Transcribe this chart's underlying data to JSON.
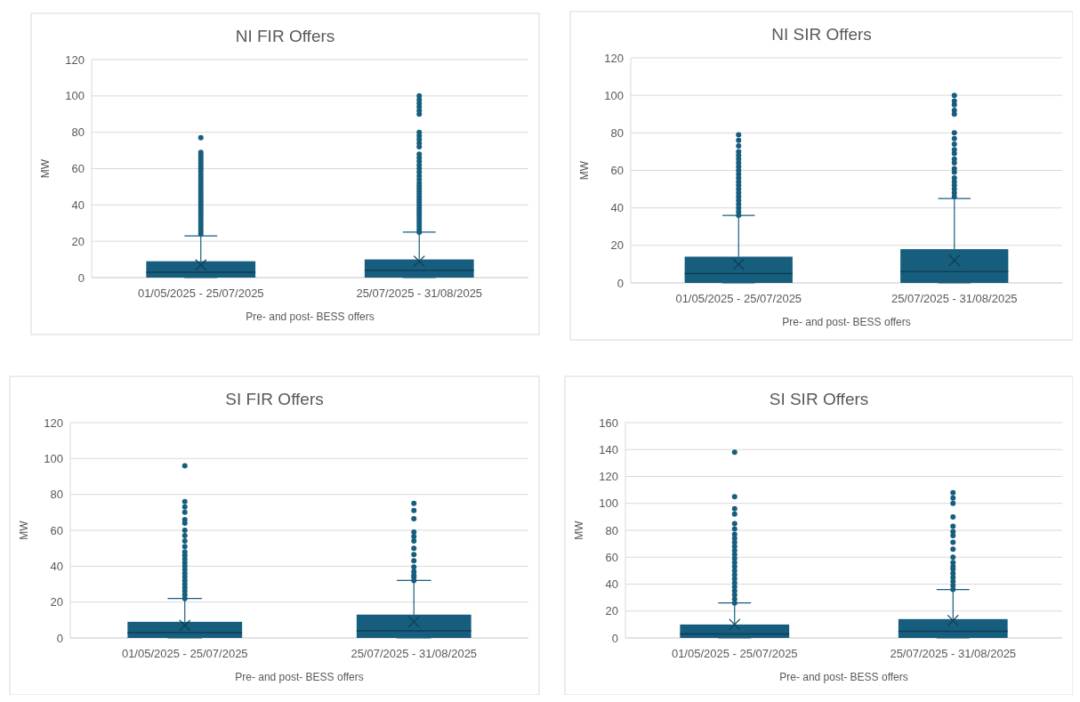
{
  "chart_data": [
    {
      "type": "box",
      "title": "NI FIR Offers",
      "xlabel": "Pre- and post- BESS offers",
      "ylabel": "MW",
      "categories": [
        "01/05/2025 - 25/07/2025",
        "25/07/2025 - 31/08/2025"
      ],
      "ylim": [
        0,
        120
      ],
      "yticks": [
        0,
        20,
        40,
        60,
        80,
        100,
        120
      ],
      "grid": "y",
      "series": [
        {
          "color": "#175e7e",
          "boxes": [
            {
              "low": 0,
              "q1": 0,
              "median": 3,
              "q3": 9,
              "high": 23,
              "mean": 7,
              "outliers": [
                24,
                25.5,
                27,
                28.5,
                30,
                31.5,
                33,
                34.5,
                36,
                37.5,
                39,
                40.5,
                42,
                43.5,
                45,
                46.5,
                48,
                49.5,
                51,
                52.5,
                54,
                55.5,
                57,
                58.5,
                60,
                61.5,
                63,
                64.5,
                66,
                67.5,
                69,
                77
              ]
            },
            {
              "low": 0,
              "q1": 0,
              "median": 4,
              "q3": 10,
              "high": 25,
              "mean": 9,
              "outliers": [
                25,
                26.5,
                28,
                29.5,
                31,
                32.5,
                34,
                35.5,
                37,
                38.5,
                40,
                41.5,
                43,
                44.5,
                46,
                47.5,
                49,
                50.5,
                52,
                54,
                56,
                58,
                60,
                62,
                64,
                66,
                68,
                72,
                74,
                76,
                78,
                80,
                90,
                92,
                94,
                96,
                98,
                100
              ]
            }
          ]
        }
      ]
    },
    {
      "type": "box",
      "title": "NI SIR Offers",
      "xlabel": "Pre- and post- BESS offers",
      "ylabel": "MW",
      "categories": [
        "01/05/2025 - 25/07/2025",
        "25/07/2025 - 31/08/2025"
      ],
      "ylim": [
        0,
        120
      ],
      "yticks": [
        0,
        20,
        40,
        60,
        80,
        100,
        120
      ],
      "grid": "y",
      "series": [
        {
          "color": "#175e7e",
          "boxes": [
            {
              "low": 0,
              "q1": 0,
              "median": 5,
              "q3": 14,
              "high": 36,
              "mean": 10,
              "outliers": [
                36,
                38,
                40,
                42,
                44,
                46,
                48,
                50,
                52,
                54,
                56,
                58,
                60,
                62,
                64,
                66,
                68,
                70,
                73,
                76,
                79
              ]
            },
            {
              "low": 0,
              "q1": 0,
              "median": 6,
              "q3": 18,
              "high": 45,
              "mean": 12,
              "outliers": [
                46,
                48,
                50,
                52,
                54,
                56,
                59,
                61,
                64,
                66,
                69,
                71,
                74,
                77,
                80,
                90,
                92,
                95,
                97,
                100
              ]
            }
          ]
        }
      ]
    },
    {
      "type": "box",
      "title": "SI FIR Offers",
      "xlabel": "Pre- and post- BESS offers",
      "ylabel": "MW",
      "categories": [
        "01/05/2025 - 25/07/2025",
        "25/07/2025 - 31/08/2025"
      ],
      "ylim": [
        0,
        120
      ],
      "yticks": [
        0,
        20,
        40,
        60,
        80,
        100,
        120
      ],
      "grid": "y",
      "series": [
        {
          "color": "#175e7e",
          "boxes": [
            {
              "low": 0,
              "q1": 0,
              "median": 3,
              "q3": 9,
              "high": 22,
              "mean": 7,
              "outliers": [
                22,
                24,
                26,
                28,
                30,
                32,
                34,
                36,
                38,
                40,
                42,
                44,
                46,
                48,
                51,
                54,
                57,
                60,
                64,
                66,
                70,
                73,
                76,
                96
              ]
            },
            {
              "low": 0,
              "q1": 0,
              "median": 4,
              "q3": 13,
              "high": 32,
              "mean": 9,
              "outliers": [
                32,
                34,
                35,
                37,
                39.5,
                43,
                46.5,
                50,
                54,
                56.5,
                59,
                66.5,
                71,
                75
              ]
            }
          ]
        }
      ]
    },
    {
      "type": "box",
      "title": "SI SIR Offers",
      "xlabel": "Pre- and post- BESS offers",
      "ylabel": "MW",
      "categories": [
        "01/05/2025 - 25/07/2025",
        "25/07/2025 - 31/08/2025"
      ],
      "ylim": [
        0,
        160
      ],
      "yticks": [
        0,
        20,
        40,
        60,
        80,
        100,
        120,
        140,
        160
      ],
      "grid": "y",
      "series": [
        {
          "color": "#175e7e",
          "boxes": [
            {
              "low": 0,
              "q1": 0,
              "median": 3,
              "q3": 10,
              "high": 26,
              "mean": 10,
              "outliers": [
                26,
                29,
                32,
                35,
                38,
                41,
                44,
                47,
                50,
                53,
                56,
                59,
                62,
                65,
                68,
                71,
                74,
                77,
                81,
                85,
                92,
                96,
                105,
                138
              ]
            },
            {
              "low": 0,
              "q1": 0,
              "median": 5,
              "q3": 14,
              "high": 36,
              "mean": 13,
              "outliers": [
                36,
                39,
                42,
                45,
                48,
                51,
                53,
                56,
                60,
                66,
                71,
                76,
                79,
                83,
                90,
                100,
                104,
                108
              ]
            }
          ]
        }
      ]
    }
  ]
}
